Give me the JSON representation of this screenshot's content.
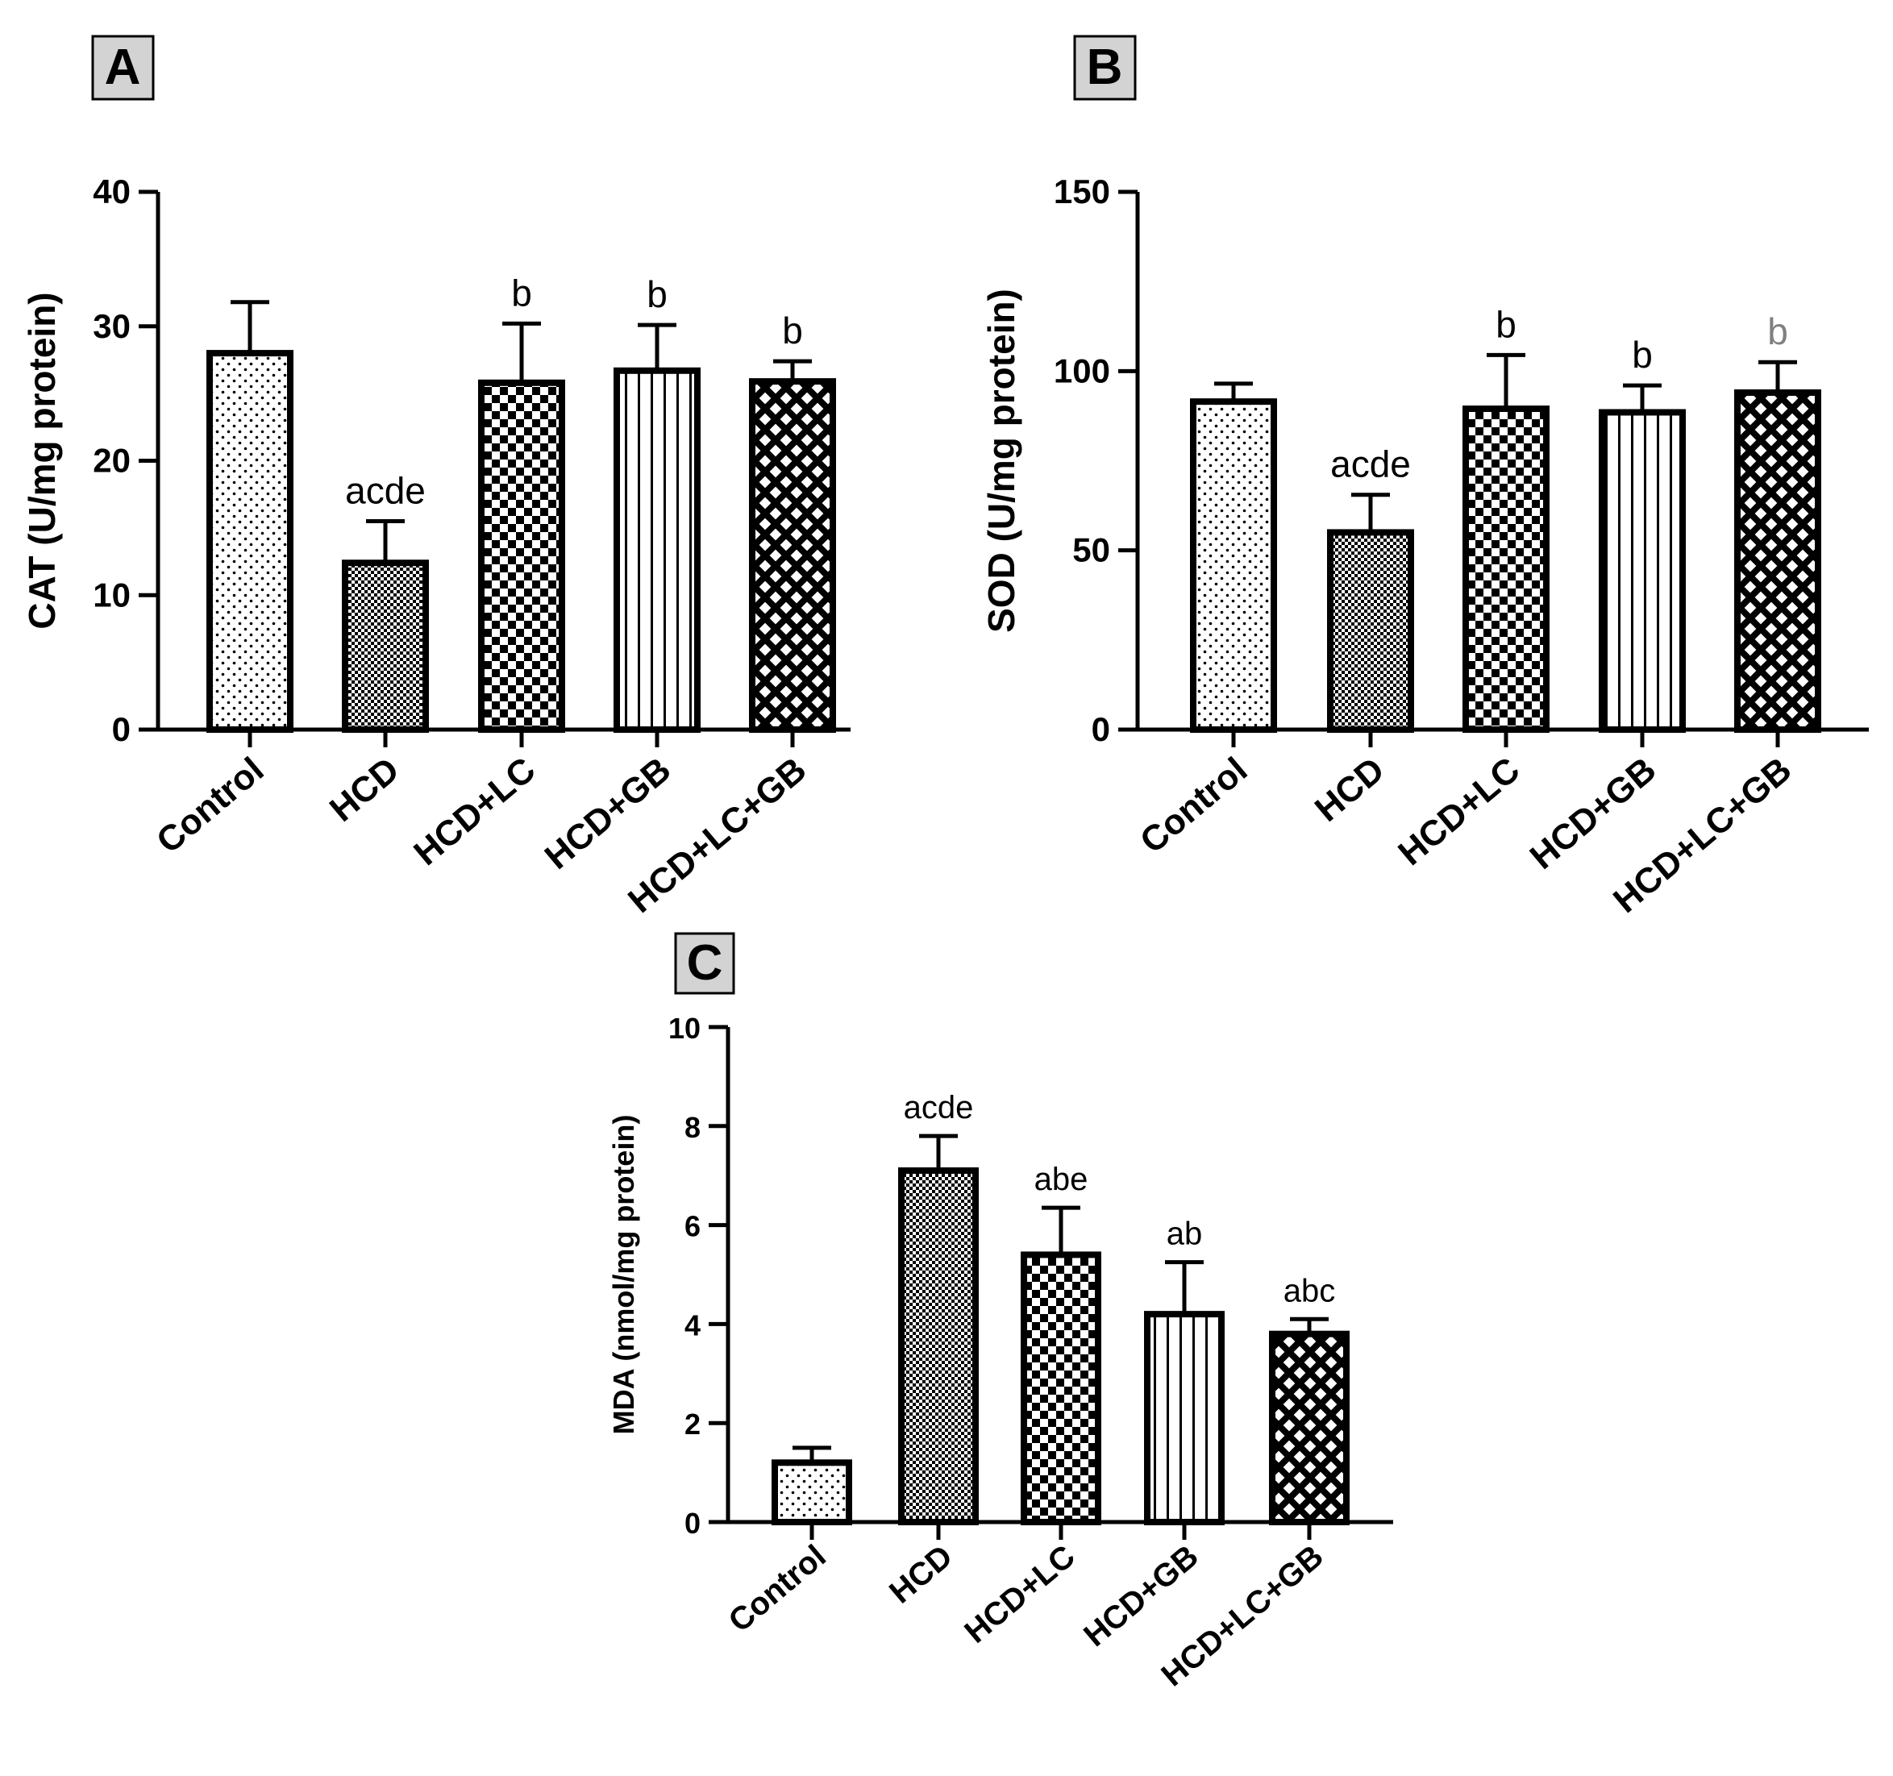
{
  "chart_data": [
    {
      "id": "A",
      "type": "bar",
      "panel_label": "A",
      "ylabel": "CAT (U/mg protein)",
      "xlabel": "",
      "ylim": [
        0,
        40
      ],
      "yticks": [
        0,
        10,
        20,
        30,
        40
      ],
      "categories": [
        "Control",
        "HCD",
        "HCD+LC",
        "HCD+GB",
        "HCD+LC+GB"
      ],
      "values": [
        28.0,
        12.4,
        25.8,
        26.7,
        25.9
      ],
      "errors": [
        3.8,
        3.1,
        4.4,
        3.4,
        1.5
      ],
      "significance": [
        "",
        "acde",
        "b",
        "b",
        "b"
      ],
      "patterns": [
        "dots",
        "fine-checker",
        "checker",
        "vertical-lines",
        "diamond-lattice"
      ]
    },
    {
      "id": "B",
      "type": "bar",
      "panel_label": "B",
      "ylabel": "SOD (U/mg protein)",
      "xlabel": "",
      "ylim": [
        0,
        150
      ],
      "yticks": [
        0,
        50,
        100,
        150
      ],
      "categories": [
        "Control",
        "HCD",
        "HCD+LC",
        "HCD+GB",
        "HCD+LC+GB"
      ],
      "values": [
        91.5,
        55.0,
        89.5,
        88.5,
        94.0
      ],
      "errors": [
        5.0,
        10.5,
        15.0,
        7.5,
        8.5
      ],
      "significance": [
        "",
        "acde",
        "b",
        "b",
        "b"
      ],
      "significance_colors": [
        "#000000",
        "#000000",
        "#000000",
        "#000000",
        "#808080"
      ],
      "patterns": [
        "dots",
        "fine-checker",
        "checker",
        "vertical-lines",
        "diamond-lattice"
      ]
    },
    {
      "id": "C",
      "type": "bar",
      "panel_label": "C",
      "ylabel": "MDA (nmol/mg protein)",
      "xlabel": "",
      "ylim": [
        0,
        10
      ],
      "yticks": [
        0,
        2,
        4,
        6,
        8,
        10
      ],
      "categories": [
        "Control",
        "HCD",
        "HCD+LC",
        "HCD+GB",
        "HCD+LC+GB"
      ],
      "values": [
        1.2,
        7.1,
        5.4,
        4.2,
        3.8
      ],
      "errors": [
        0.3,
        0.7,
        0.95,
        1.05,
        0.3
      ],
      "significance": [
        "",
        "acde",
        "abe",
        "ab",
        "abc"
      ],
      "patterns": [
        "dots",
        "fine-checker",
        "checker",
        "vertical-lines",
        "diamond-lattice"
      ]
    }
  ]
}
